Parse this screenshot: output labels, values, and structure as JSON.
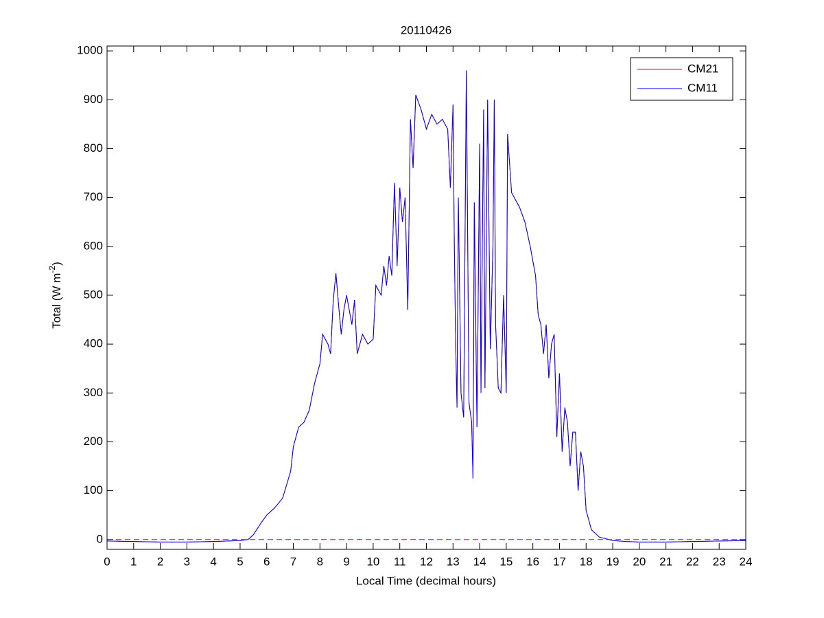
{
  "chart_data": {
    "type": "line",
    "title": "20110426",
    "xlabel": "Local Time (decimal hours)",
    "ylabel": {
      "text": "Total (W m",
      "superscript": "-2",
      "suffix": ")"
    },
    "x": [
      0,
      1,
      2,
      3,
      4,
      5,
      5.3,
      5.5,
      5.8,
      6,
      6.3,
      6.6,
      6.9,
      7,
      7.2,
      7.4,
      7.6,
      7.8,
      8,
      8.1,
      8.3,
      8.4,
      8.5,
      8.6,
      8.7,
      8.8,
      8.9,
      9,
      9.2,
      9.3,
      9.4,
      9.6,
      9.8,
      10,
      10.1,
      10.3,
      10.4,
      10.5,
      10.6,
      10.7,
      10.8,
      10.9,
      11,
      11.1,
      11.2,
      11.3,
      11.4,
      11.5,
      11.6,
      11.8,
      12,
      12.2,
      12.4,
      12.6,
      12.8,
      12.9,
      13,
      13.05,
      13.1,
      13.15,
      13.2,
      13.3,
      13.4,
      13.5,
      13.6,
      13.7,
      13.75,
      13.8,
      13.9,
      14,
      14.05,
      14.1,
      14.15,
      14.2,
      14.3,
      14.4,
      14.5,
      14.55,
      14.6,
      14.7,
      14.8,
      14.9,
      15,
      15.05,
      15.2,
      15.5,
      15.7,
      15.9,
      16.1,
      16.2,
      16.3,
      16.4,
      16.5,
      16.6,
      16.7,
      16.8,
      16.9,
      17,
      17.1,
      17.2,
      17.3,
      17.4,
      17.5,
      17.6,
      17.7,
      17.8,
      17.9,
      18,
      18.2,
      18.5,
      19,
      19.5,
      20,
      21,
      22,
      23,
      24
    ],
    "series": [
      {
        "name": "CM21",
        "color": "#ff0000",
        "values": [
          -3,
          -4,
          -5,
          -5,
          -4,
          -2,
          0,
          10,
          35,
          50,
          65,
          85,
          140,
          190,
          230,
          240,
          265,
          320,
          360,
          420,
          400,
          380,
          490,
          545,
          480,
          420,
          470,
          500,
          440,
          490,
          380,
          420,
          400,
          410,
          520,
          500,
          560,
          520,
          580,
          540,
          730,
          560,
          720,
          650,
          700,
          470,
          860,
          760,
          910,
          880,
          840,
          870,
          850,
          860,
          840,
          720,
          890,
          600,
          400,
          270,
          700,
          300,
          250,
          960,
          280,
          240,
          125,
          690,
          230,
          810,
          300,
          600,
          880,
          310,
          900,
          390,
          600,
          900,
          440,
          310,
          300,
          500,
          300,
          830,
          710,
          680,
          650,
          600,
          540,
          460,
          440,
          380,
          440,
          330,
          400,
          420,
          210,
          340,
          180,
          270,
          240,
          150,
          220,
          220,
          100,
          180,
          150,
          60,
          20,
          5,
          -2,
          -4,
          -5,
          -5,
          -4,
          -3,
          -2
        ]
      },
      {
        "name": "CM11",
        "color": "#0000ff",
        "values": [
          -3,
          -4,
          -5,
          -5,
          -4,
          -2,
          0,
          10,
          35,
          50,
          65,
          85,
          140,
          190,
          230,
          240,
          265,
          320,
          360,
          420,
          400,
          380,
          490,
          545,
          480,
          420,
          470,
          500,
          440,
          490,
          380,
          420,
          400,
          410,
          520,
          500,
          560,
          520,
          580,
          540,
          730,
          560,
          720,
          650,
          700,
          470,
          860,
          760,
          910,
          880,
          840,
          870,
          850,
          860,
          840,
          720,
          890,
          600,
          400,
          270,
          700,
          300,
          250,
          960,
          280,
          240,
          125,
          690,
          230,
          810,
          300,
          600,
          880,
          310,
          900,
          390,
          600,
          900,
          440,
          310,
          300,
          500,
          300,
          830,
          710,
          680,
          650,
          600,
          540,
          460,
          440,
          380,
          440,
          330,
          400,
          420,
          210,
          340,
          180,
          270,
          240,
          150,
          220,
          220,
          100,
          180,
          150,
          60,
          20,
          5,
          -2,
          -4,
          -5,
          -5,
          -4,
          -3,
          -2
        ]
      }
    ],
    "hline": {
      "value": 0,
      "color": "#ff0000"
    },
    "xlim": [
      0,
      24
    ],
    "xticks": [
      0,
      1,
      2,
      3,
      4,
      5,
      6,
      7,
      8,
      9,
      10,
      11,
      12,
      13,
      14,
      15,
      16,
      17,
      18,
      19,
      20,
      21,
      22,
      23,
      24
    ],
    "ylim": [
      -20,
      1010
    ],
    "yticks": [
      0,
      100,
      200,
      300,
      400,
      500,
      600,
      700,
      800,
      900,
      1000
    ],
    "grid": false,
    "legend": "upper right"
  }
}
